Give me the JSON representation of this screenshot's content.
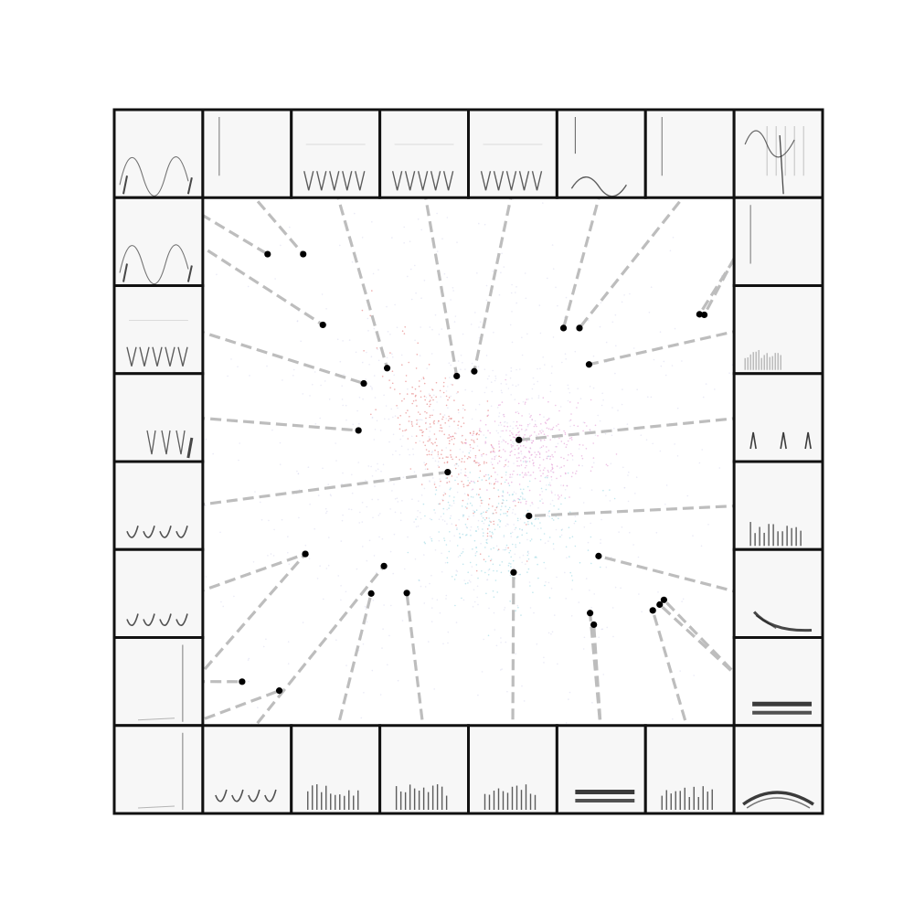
{
  "figure": {
    "description_visible_text": "",
    "grid": {
      "columns": 8,
      "rows": 8
    }
  },
  "colors": {
    "frame": "#111111",
    "tile_bg": "#f7f7f7",
    "spectrogram_ink": "#1a1a1a",
    "connector": "#bdbdbd",
    "anchor_point": "#000000",
    "cluster_red": "#e06a6a",
    "cluster_pink": "#e08fd0",
    "cluster_cyan": "#8fd3e0",
    "background_points": "#d9d9ee"
  },
  "tiles": [
    {
      "id": "t0",
      "style": "hills"
    },
    {
      "id": "t1",
      "style": "empty"
    },
    {
      "id": "t2",
      "style": "multi-v"
    },
    {
      "id": "t3",
      "style": "multi-v"
    },
    {
      "id": "t4",
      "style": "multi-v"
    },
    {
      "id": "t5",
      "style": "hills-low"
    },
    {
      "id": "t6",
      "style": "empty"
    },
    {
      "id": "t7",
      "style": "tall-lines"
    },
    {
      "id": "l1",
      "style": "hills"
    },
    {
      "id": "l2",
      "style": "multi-v"
    },
    {
      "id": "l3",
      "style": "v-right"
    },
    {
      "id": "l4",
      "style": "v-few"
    },
    {
      "id": "l5",
      "style": "v-few"
    },
    {
      "id": "l6",
      "style": "line-right"
    },
    {
      "id": "r1",
      "style": "empty"
    },
    {
      "id": "r2",
      "style": "low-noise"
    },
    {
      "id": "r3",
      "style": "spikes"
    },
    {
      "id": "r4",
      "style": "bars"
    },
    {
      "id": "r5",
      "style": "diagonal"
    },
    {
      "id": "r6",
      "style": "bands"
    },
    {
      "id": "b0",
      "style": "line-right"
    },
    {
      "id": "b1",
      "style": "v-few"
    },
    {
      "id": "b2",
      "style": "bars"
    },
    {
      "id": "b3",
      "style": "bars"
    },
    {
      "id": "b4",
      "style": "bars"
    },
    {
      "id": "b5",
      "style": "bands"
    },
    {
      "id": "b6",
      "style": "bars"
    },
    {
      "id": "b7",
      "style": "arc"
    }
  ],
  "connections": [
    {
      "tile": "t0",
      "point": [
        0.122,
        0.107
      ]
    },
    {
      "tile": "t1",
      "point": [
        0.189,
        0.107
      ]
    },
    {
      "tile": "t2",
      "point": [
        0.347,
        0.323
      ]
    },
    {
      "tile": "t3",
      "point": [
        0.478,
        0.338
      ]
    },
    {
      "tile": "t4",
      "point": [
        0.511,
        0.329
      ]
    },
    {
      "tile": "t5",
      "point": [
        0.679,
        0.247
      ]
    },
    {
      "tile": "t6",
      "point": [
        0.709,
        0.247
      ]
    },
    {
      "tile": "t7",
      "point": [
        0.935,
        0.221
      ]
    },
    {
      "tile": "l1",
      "point": [
        0.226,
        0.241
      ]
    },
    {
      "tile": "l2",
      "point": [
        0.303,
        0.352
      ]
    },
    {
      "tile": "l3",
      "point": [
        0.293,
        0.441
      ]
    },
    {
      "tile": "l4",
      "point": [
        0.461,
        0.52
      ]
    },
    {
      "tile": "l5",
      "point": [
        0.193,
        0.675
      ]
    },
    {
      "tile": "l6",
      "point": [
        0.074,
        0.917
      ]
    },
    {
      "tile": "r1",
      "point": [
        0.944,
        0.222
      ]
    },
    {
      "tile": "r2",
      "point": [
        0.727,
        0.316
      ]
    },
    {
      "tile": "r3",
      "point": [
        0.595,
        0.459
      ]
    },
    {
      "tile": "r4",
      "point": [
        0.614,
        0.603
      ]
    },
    {
      "tile": "r5",
      "point": [
        0.745,
        0.679
      ]
    },
    {
      "tile": "r6",
      "point": [
        0.86,
        0.771
      ]
    },
    {
      "tile": "b0",
      "point": [
        0.144,
        0.934
      ]
    },
    {
      "tile": "b1",
      "point": [
        0.341,
        0.698
      ]
    },
    {
      "tile": "b2",
      "point": [
        0.317,
        0.75
      ]
    },
    {
      "tile": "b3",
      "point": [
        0.384,
        0.749
      ]
    },
    {
      "tile": "b4",
      "point": [
        0.585,
        0.71
      ]
    },
    {
      "tile": "b5",
      "point": [
        0.729,
        0.787
      ]
    },
    {
      "tile": "b6",
      "point": [
        0.847,
        0.782
      ]
    },
    {
      "tile": "t7b",
      "tile_ref": "r6",
      "point": [
        0.868,
        0.762
      ]
    },
    {
      "tile": "b5b",
      "tile_ref": "b5",
      "point": [
        0.736,
        0.809
      ]
    },
    {
      "tile": "b2b",
      "tile_ref": "l6",
      "point": [
        0.193,
        0.675
      ]
    }
  ]
}
